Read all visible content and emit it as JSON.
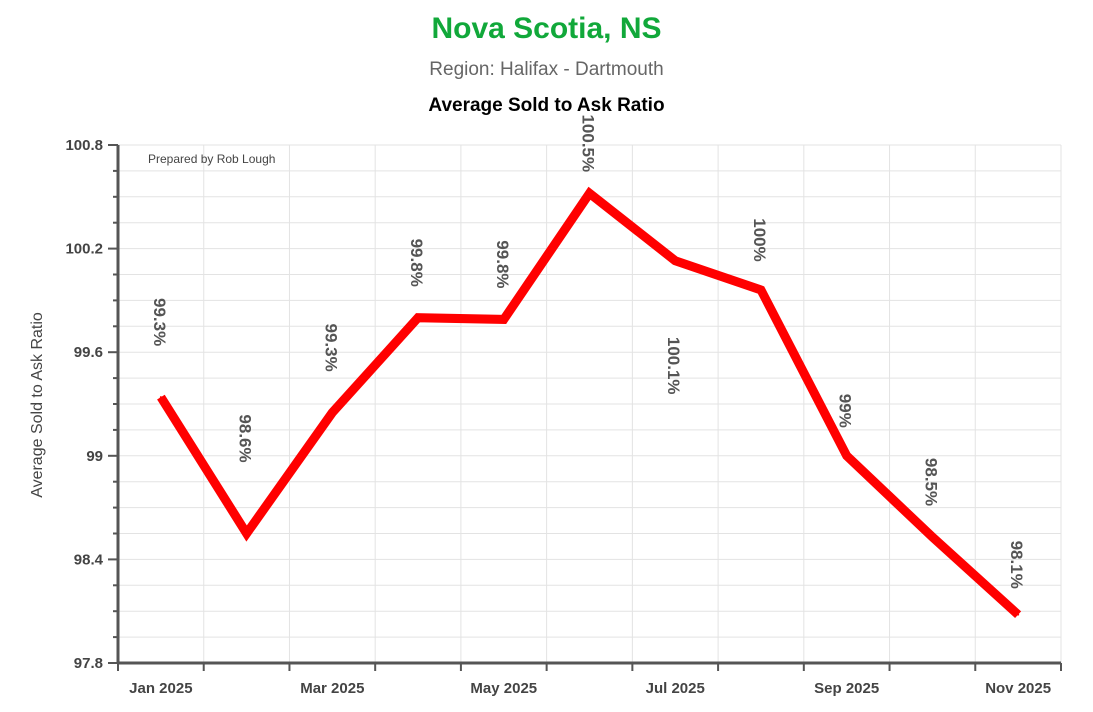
{
  "header": {
    "title": "Nova Scotia, NS",
    "subtitle": "Region: Halifax - Dartmouth",
    "chart_title": "Average Sold to Ask Ratio"
  },
  "credit": "Prepared by Rob Lough",
  "colors": {
    "title": "#11a83a",
    "line": "#ff0000",
    "grid": "#dddddd",
    "axis": "#555555"
  },
  "chart_data": {
    "type": "line",
    "title": "Average Sold to Ask Ratio",
    "xlabel": "",
    "ylabel": "Average Sold to Ask Ratio",
    "ylim": [
      97.8,
      100.8
    ],
    "yticks": [
      "100.8",
      "100.2",
      "99.6",
      "99",
      "98.4",
      "97.8"
    ],
    "xtick_labels": [
      "Jan 2025",
      "Mar 2025",
      "May 2025",
      "Jul 2025",
      "Sep 2025",
      "Nov 2025"
    ],
    "grid": true,
    "series": [
      {
        "x": [
          "Jan 2025",
          "Feb 2025",
          "Mar 2025",
          "Apr 2025",
          "May 2025",
          "Jun 2025",
          "Jul 2025",
          "Aug 2025",
          "Sep 2025",
          "Oct 2025",
          "Nov 2025"
        ],
        "values": [
          99.34,
          98.55,
          99.25,
          99.8,
          99.79,
          100.52,
          100.13,
          99.96,
          99.0,
          98.53,
          98.08
        ],
        "labels": [
          "99.3%",
          "98.6%",
          "99.3%",
          "99.8%",
          "99.8%",
          "100.5%",
          "100.1%",
          "100%",
          "99%",
          "98.5%",
          "98.1%"
        ]
      }
    ]
  }
}
